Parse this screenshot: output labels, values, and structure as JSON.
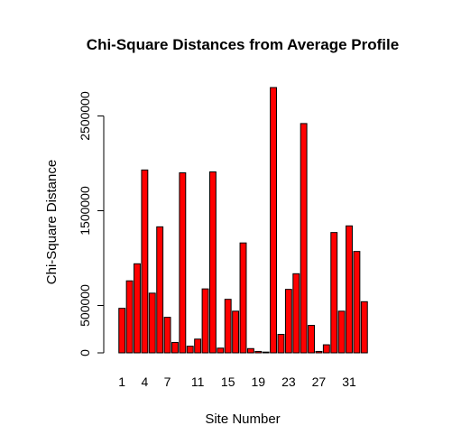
{
  "chart_data": {
    "type": "bar",
    "title": "Chi-Square Distances from Average Profile",
    "xlabel": "Site Number",
    "ylabel": "Chi-Square Distance",
    "categories": [
      "1",
      "2",
      "3",
      "4",
      "5",
      "6",
      "7",
      "8",
      "9",
      "10",
      "11",
      "12",
      "13",
      "14",
      "15",
      "16",
      "17",
      "18",
      "19",
      "20",
      "21",
      "22",
      "23",
      "24",
      "25",
      "26",
      "27",
      "28",
      "29",
      "30",
      "31",
      "32",
      "33"
    ],
    "x_tick_labels": [
      "1",
      "4",
      "7",
      "11",
      "15",
      "19",
      "23",
      "27",
      "31"
    ],
    "x_tick_label_categories": [
      "1",
      "4",
      "7",
      "11",
      "15",
      "19",
      "23",
      "27",
      "31"
    ],
    "y_ticks": [
      0,
      500000,
      1500000,
      2500000
    ],
    "y_tick_labels": [
      "0",
      "500000",
      "1500000",
      "2500000"
    ],
    "ylim": [
      0,
      2800000
    ],
    "values": [
      470000,
      760000,
      940000,
      1930000,
      630000,
      1330000,
      375000,
      110000,
      1900000,
      70000,
      145000,
      675000,
      1910000,
      50000,
      565000,
      440000,
      1160000,
      45000,
      15000,
      8000,
      2800000,
      195000,
      670000,
      835000,
      2420000,
      290000,
      15000,
      85000,
      1270000,
      440000,
      1340000,
      1070000,
      540000
    ],
    "bar_color": "#ff0000",
    "bar_border_color": "#000000",
    "grid": false,
    "legend": "none"
  }
}
